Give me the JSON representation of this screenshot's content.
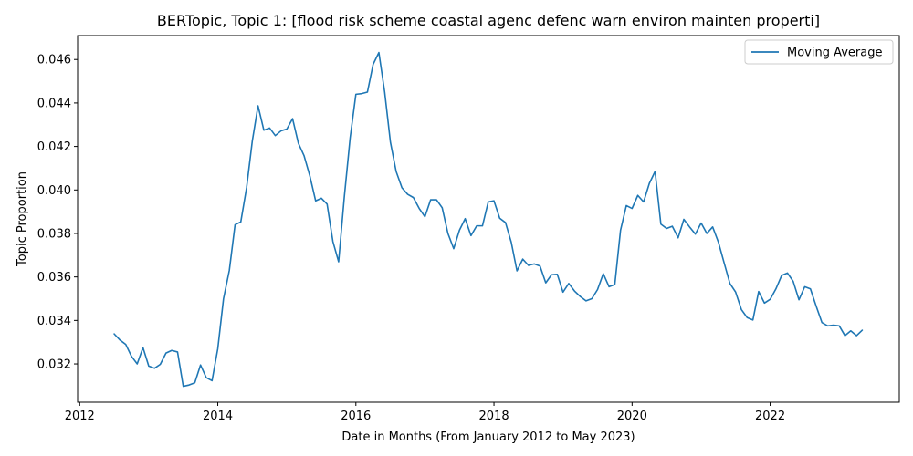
{
  "chart_data": {
    "type": "line",
    "title": "BERTopic, Topic 1: [flood risk scheme coastal agenc defenc warn environ mainten properti]",
    "xlabel": "Date in Months (From January 2012 to May 2023)",
    "ylabel": "Topic Proportion",
    "xlim": [
      2011.97,
      2023.87
    ],
    "ylim": [
      0.03024,
      0.0471
    ],
    "xticks": [
      "2012",
      "2014",
      "2016",
      "2018",
      "2020",
      "2022"
    ],
    "yticks": [
      "0.032",
      "0.034",
      "0.036",
      "0.038",
      "0.040",
      "0.042",
      "0.044",
      "0.046"
    ],
    "grid": false,
    "legend_position": "top-right",
    "colors": {
      "line": "#1f77b4",
      "axes": "#000000",
      "legend_border": "#cccccc"
    },
    "series": [
      {
        "name": "Moving Average",
        "x": [
          2012.5,
          2012.583,
          2012.667,
          2012.75,
          2012.833,
          2012.917,
          2013.0,
          2013.083,
          2013.167,
          2013.25,
          2013.333,
          2013.417,
          2013.5,
          2013.583,
          2013.667,
          2013.75,
          2013.833,
          2013.917,
          2014.0,
          2014.083,
          2014.167,
          2014.25,
          2014.333,
          2014.417,
          2014.5,
          2014.583,
          2014.667,
          2014.75,
          2014.833,
          2014.917,
          2015.0,
          2015.083,
          2015.167,
          2015.25,
          2015.333,
          2015.417,
          2015.5,
          2015.583,
          2015.667,
          2015.75,
          2015.833,
          2015.917,
          2016.0,
          2016.083,
          2016.167,
          2016.25,
          2016.333,
          2016.417,
          2016.5,
          2016.583,
          2016.667,
          2016.75,
          2016.833,
          2016.917,
          2017.0,
          2017.083,
          2017.167,
          2017.25,
          2017.333,
          2017.417,
          2017.5,
          2017.583,
          2017.667,
          2017.75,
          2017.833,
          2017.917,
          2018.0,
          2018.083,
          2018.167,
          2018.25,
          2018.333,
          2018.417,
          2018.5,
          2018.583,
          2018.667,
          2018.75,
          2018.833,
          2018.917,
          2019.0,
          2019.083,
          2019.167,
          2019.25,
          2019.333,
          2019.417,
          2019.5,
          2019.583,
          2019.667,
          2019.75,
          2019.833,
          2019.917,
          2020.0,
          2020.083,
          2020.167,
          2020.25,
          2020.333,
          2020.417,
          2020.5,
          2020.583,
          2020.667,
          2020.75,
          2020.833,
          2020.917,
          2021.0,
          2021.083,
          2021.167,
          2021.25,
          2021.333,
          2021.417,
          2021.5,
          2021.583,
          2021.667,
          2021.75,
          2021.833,
          2021.917,
          2022.0,
          2022.083,
          2022.167,
          2022.25,
          2022.333,
          2022.417,
          2022.5,
          2022.583,
          2022.667,
          2022.75,
          2022.833,
          2022.917,
          2023.0,
          2023.083,
          2023.167,
          2023.25,
          2023.333
        ],
        "values": [
          0.03338,
          0.0331,
          0.0329,
          0.03235,
          0.032,
          0.03275,
          0.0319,
          0.0318,
          0.03198,
          0.0325,
          0.03262,
          0.03255,
          0.03097,
          0.03103,
          0.03113,
          0.03195,
          0.03137,
          0.03123,
          0.0327,
          0.035,
          0.0363,
          0.0384,
          0.03853,
          0.0401,
          0.04225,
          0.04387,
          0.04275,
          0.04285,
          0.0425,
          0.04272,
          0.0428,
          0.04328,
          0.04215,
          0.04157,
          0.04065,
          0.0395,
          0.03962,
          0.03935,
          0.03763,
          0.0367,
          0.0397,
          0.0424,
          0.0444,
          0.04443,
          0.0445,
          0.04578,
          0.04632,
          0.0445,
          0.0422,
          0.04085,
          0.0401,
          0.0398,
          0.03965,
          0.03915,
          0.03877,
          0.03955,
          0.03955,
          0.03918,
          0.038,
          0.0373,
          0.03815,
          0.03868,
          0.0379,
          0.03835,
          0.03835,
          0.03945,
          0.0395,
          0.0387,
          0.0385,
          0.0376,
          0.03628,
          0.03682,
          0.03653,
          0.0366,
          0.0365,
          0.03573,
          0.0361,
          0.03612,
          0.0353,
          0.0357,
          0.03535,
          0.0351,
          0.0349,
          0.035,
          0.03542,
          0.03615,
          0.03555,
          0.03565,
          0.03815,
          0.03928,
          0.03915,
          0.03975,
          0.03945,
          0.0403,
          0.04085,
          0.03843,
          0.03823,
          0.03833,
          0.0378,
          0.03865,
          0.0383,
          0.03797,
          0.03848,
          0.038,
          0.0383,
          0.0376,
          0.03665,
          0.0357,
          0.0353,
          0.0345,
          0.03413,
          0.03402,
          0.03533,
          0.0348,
          0.03497,
          0.03545,
          0.03607,
          0.03618,
          0.0358,
          0.03495,
          0.03555,
          0.03545,
          0.03465,
          0.0339,
          0.03375,
          0.03378,
          0.03375,
          0.0333,
          0.03352,
          0.0333,
          0.03355
        ]
      }
    ]
  }
}
